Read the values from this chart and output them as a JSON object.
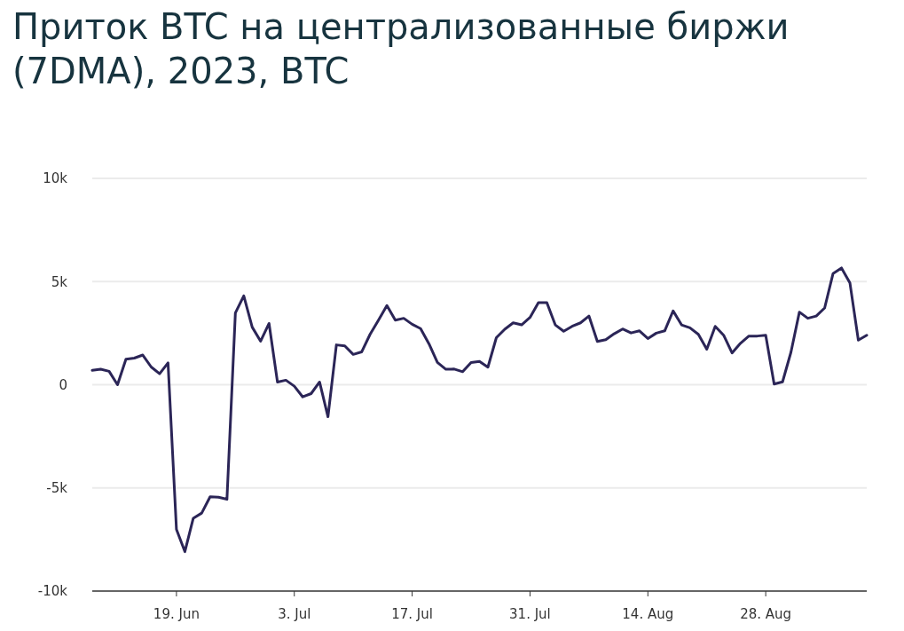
{
  "chart_data": {
    "type": "line",
    "title": "Приток BTC на централизованные биржи (7DMA), 2023, BTC",
    "x": [
      "2023-06-09",
      "2023-06-10",
      "2023-06-11",
      "2023-06-12",
      "2023-06-13",
      "2023-06-14",
      "2023-06-15",
      "2023-06-16",
      "2023-06-17",
      "2023-06-18",
      "2023-06-19",
      "2023-06-20",
      "2023-06-21",
      "2023-06-22",
      "2023-06-23",
      "2023-06-24",
      "2023-06-25",
      "2023-06-26",
      "2023-06-27",
      "2023-06-28",
      "2023-06-29",
      "2023-06-30",
      "2023-07-01",
      "2023-07-02",
      "2023-07-03",
      "2023-07-04",
      "2023-07-05",
      "2023-07-06",
      "2023-07-07",
      "2023-07-08",
      "2023-07-09",
      "2023-07-10",
      "2023-07-11",
      "2023-07-12",
      "2023-07-13",
      "2023-07-14",
      "2023-07-15",
      "2023-07-16",
      "2023-07-17",
      "2023-07-18",
      "2023-07-19",
      "2023-07-20",
      "2023-07-21",
      "2023-07-22",
      "2023-07-23",
      "2023-07-24",
      "2023-07-25",
      "2023-07-26",
      "2023-07-27",
      "2023-07-28",
      "2023-07-29",
      "2023-07-30",
      "2023-07-31",
      "2023-08-01",
      "2023-08-02",
      "2023-08-03",
      "2023-08-04",
      "2023-08-05",
      "2023-08-06",
      "2023-08-07",
      "2023-08-08",
      "2023-08-09",
      "2023-08-10",
      "2023-08-11",
      "2023-08-12",
      "2023-08-13",
      "2023-08-14",
      "2023-08-15",
      "2023-08-16",
      "2023-08-17",
      "2023-08-18",
      "2023-08-19",
      "2023-08-20",
      "2023-08-21",
      "2023-08-22",
      "2023-08-23",
      "2023-08-24",
      "2023-08-25",
      "2023-08-26",
      "2023-08-27",
      "2023-08-28",
      "2023-08-29",
      "2023-08-30",
      "2023-08-31",
      "2023-09-01",
      "2023-09-02",
      "2023-09-03",
      "2023-09-04",
      "2023-09-05",
      "2023-09-06",
      "2023-09-07",
      "2023-09-08",
      "2023-09-09"
    ],
    "series": [
      {
        "color": "#2b2557",
        "values": [
          0.7,
          0.75,
          0.65,
          0.0,
          1.24,
          1.29,
          1.44,
          0.86,
          0.53,
          1.06,
          -7.01,
          -8.09,
          -6.47,
          -6.22,
          -5.43,
          -5.45,
          -5.55,
          3.48,
          4.31,
          2.79,
          2.11,
          2.97,
          0.13,
          0.22,
          -0.07,
          -0.59,
          -0.43,
          0.13,
          -1.55,
          1.93,
          1.88,
          1.47,
          1.59,
          2.44,
          3.13,
          3.84,
          3.13,
          3.22,
          2.93,
          2.72,
          1.98,
          1.08,
          0.75,
          0.76,
          0.63,
          1.08,
          1.13,
          0.85,
          2.28,
          2.69,
          3.0,
          2.9,
          3.26,
          3.98,
          3.98,
          2.9,
          2.59,
          2.83,
          3.0,
          3.33,
          2.1,
          2.18,
          2.47,
          2.7,
          2.51,
          2.61,
          2.24,
          2.5,
          2.61,
          3.58,
          2.9,
          2.76,
          2.44,
          1.72,
          2.83,
          2.4,
          1.54,
          2.01,
          2.36,
          2.36,
          2.4,
          0.03,
          0.14,
          1.58,
          3.52,
          3.22,
          3.33,
          3.72,
          5.39,
          5.66,
          4.94,
          2.16,
          2.4
        ]
      }
    ],
    "xlim": [
      "2023-06-09",
      "2023-09-09"
    ],
    "xticks": [
      {
        "value": "2023-06-19",
        "label": "19. Jun"
      },
      {
        "value": "2023-07-03",
        "label": "3. Jul"
      },
      {
        "value": "2023-07-17",
        "label": "17. Jul"
      },
      {
        "value": "2023-07-31",
        "label": "31. Jul"
      },
      {
        "value": "2023-08-14",
        "label": "14. Aug"
      },
      {
        "value": "2023-08-28",
        "label": "28. Aug"
      }
    ],
    "ylim": [
      -10,
      10
    ],
    "yticks": [
      {
        "value": -10,
        "label": "-10k"
      },
      {
        "value": -5,
        "label": "-5k"
      },
      {
        "value": 0,
        "label": "0"
      },
      {
        "value": 5,
        "label": "5k"
      },
      {
        "value": 10,
        "label": "10k"
      }
    ],
    "grid": "y",
    "marker": "none",
    "line_style": "solid"
  }
}
